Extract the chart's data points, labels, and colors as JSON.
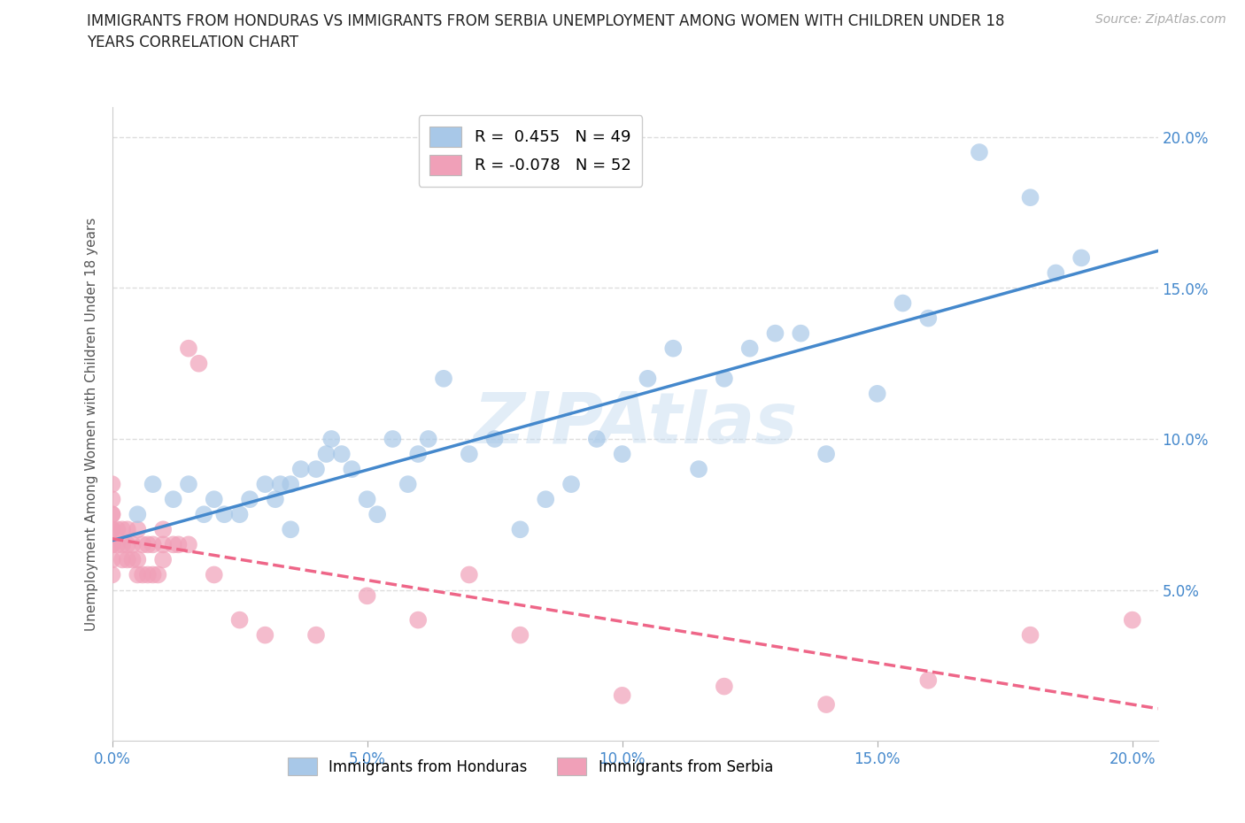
{
  "title_line1": "IMMIGRANTS FROM HONDURAS VS IMMIGRANTS FROM SERBIA UNEMPLOYMENT AMONG WOMEN WITH CHILDREN UNDER 18",
  "title_line2": "YEARS CORRELATION CHART",
  "source": "Source: ZipAtlas.com",
  "ylabel": "Unemployment Among Women with Children Under 18 years",
  "xlim": [
    0.0,
    0.205
  ],
  "ylim": [
    0.0,
    0.21
  ],
  "xticks": [
    0.0,
    0.05,
    0.1,
    0.15,
    0.2
  ],
  "yticks": [
    0.05,
    0.1,
    0.15,
    0.2
  ],
  "xtick_labels": [
    "0.0%",
    "5.0%",
    "10.0%",
    "15.0%",
    "20.0%"
  ],
  "ytick_labels_right": [
    "5.0%",
    "10.0%",
    "15.0%",
    "20.0%"
  ],
  "watermark": "ZIPAtlas",
  "legend1_label": "Immigrants from Honduras",
  "legend2_label": "Immigrants from Serbia",
  "R_honduras": 0.455,
  "N_honduras": 49,
  "R_serbia": -0.078,
  "N_serbia": 52,
  "blue_color": "#A8C8E8",
  "pink_color": "#F0A0B8",
  "blue_line_color": "#4488CC",
  "pink_line_color": "#EE6688",
  "grid_color": "#DDDDDD",
  "background_color": "#FFFFFF",
  "honduras_x": [
    0.005,
    0.008,
    0.012,
    0.015,
    0.018,
    0.02,
    0.022,
    0.025,
    0.027,
    0.03,
    0.032,
    0.033,
    0.035,
    0.035,
    0.037,
    0.04,
    0.042,
    0.043,
    0.045,
    0.047,
    0.05,
    0.052,
    0.055,
    0.058,
    0.06,
    0.062,
    0.065,
    0.07,
    0.075,
    0.08,
    0.085,
    0.09,
    0.095,
    0.1,
    0.105,
    0.11,
    0.115,
    0.12,
    0.125,
    0.13,
    0.135,
    0.14,
    0.15,
    0.155,
    0.16,
    0.17,
    0.18,
    0.185,
    0.19
  ],
  "honduras_y": [
    0.075,
    0.085,
    0.08,
    0.085,
    0.075,
    0.08,
    0.075,
    0.075,
    0.08,
    0.085,
    0.08,
    0.085,
    0.07,
    0.085,
    0.09,
    0.09,
    0.095,
    0.1,
    0.095,
    0.09,
    0.08,
    0.075,
    0.1,
    0.085,
    0.095,
    0.1,
    0.12,
    0.095,
    0.1,
    0.07,
    0.08,
    0.085,
    0.1,
    0.095,
    0.12,
    0.13,
    0.09,
    0.12,
    0.13,
    0.135,
    0.135,
    0.095,
    0.115,
    0.145,
    0.14,
    0.195,
    0.18,
    0.155,
    0.16
  ],
  "serbia_x": [
    0.0,
    0.0,
    0.0,
    0.0,
    0.0,
    0.0,
    0.0,
    0.0,
    0.0,
    0.0,
    0.001,
    0.001,
    0.002,
    0.002,
    0.002,
    0.003,
    0.003,
    0.003,
    0.004,
    0.004,
    0.005,
    0.005,
    0.005,
    0.006,
    0.006,
    0.007,
    0.007,
    0.008,
    0.008,
    0.009,
    0.01,
    0.01,
    0.01,
    0.012,
    0.013,
    0.015,
    0.015,
    0.017,
    0.02,
    0.025,
    0.03,
    0.04,
    0.05,
    0.06,
    0.07,
    0.08,
    0.1,
    0.12,
    0.14,
    0.16,
    0.18,
    0.2
  ],
  "serbia_y": [
    0.055,
    0.06,
    0.065,
    0.065,
    0.07,
    0.07,
    0.075,
    0.075,
    0.08,
    0.085,
    0.065,
    0.07,
    0.06,
    0.065,
    0.07,
    0.06,
    0.065,
    0.07,
    0.06,
    0.065,
    0.055,
    0.06,
    0.07,
    0.055,
    0.065,
    0.055,
    0.065,
    0.055,
    0.065,
    0.055,
    0.06,
    0.065,
    0.07,
    0.065,
    0.065,
    0.065,
    0.13,
    0.125,
    0.055,
    0.04,
    0.035,
    0.035,
    0.048,
    0.04,
    0.055,
    0.035,
    0.015,
    0.018,
    0.012,
    0.02,
    0.035,
    0.04
  ]
}
